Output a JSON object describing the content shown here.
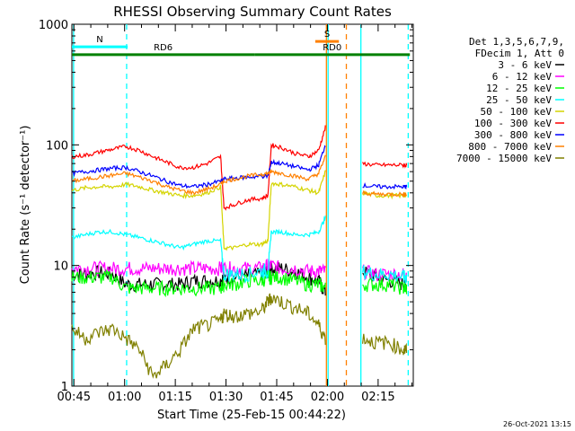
{
  "chart_data": {
    "type": "line",
    "title": "RHESSI Observing Summary Count Rates",
    "xlabel": "Start Time (25-Feb-15 00:44:22)",
    "ylabel": "Count Rate (s⁻¹ detector⁻¹)",
    "yscale": "log",
    "ylim": [
      1,
      1000
    ],
    "xlim_minutes": [
      0,
      101
    ],
    "x_tick_labels": [
      "00:45",
      "01:00",
      "01:15",
      "01:30",
      "01:45",
      "02:00",
      "02:15"
    ],
    "x_tick_minutes": [
      0.6,
      15.6,
      30.6,
      45.6,
      60.6,
      75.6,
      90.6
    ],
    "y_tick_labels": [
      "1",
      "10",
      "100",
      "1000"
    ],
    "y_tick_values": [
      1,
      10,
      100,
      1000
    ],
    "legend_header": [
      "Det 1,3,5,6,7,9,",
      "FDecim 1, Att 0"
    ],
    "legend_placement": "right",
    "timestamp": "26-Oct-2021 13:15",
    "annotations": [
      {
        "label": "N",
        "color": "#00ffff",
        "x_start": 0,
        "x_end": 16.5,
        "y": 650
      },
      {
        "label": "RD6",
        "color": "#008000",
        "x_start": 0,
        "x_end": 54,
        "y": 560
      },
      {
        "label": "RD0",
        "color": "#008000",
        "x_start": 54,
        "x_end": 100,
        "y": 560
      },
      {
        "label": "S",
        "color": "#ff8000",
        "x_start": 72,
        "x_end": 79,
        "y": 720
      }
    ],
    "gaps_minutes": [
      [
        75.5,
        80.5
      ]
    ],
    "vertical_lines": [
      {
        "x": 0.5,
        "color": "#00ffff",
        "style": "solid"
      },
      {
        "x": 16.2,
        "color": "#00ffff",
        "style": "dashed"
      },
      {
        "x": 75.8,
        "color": "#00ffff",
        "style": "solid"
      },
      {
        "x": 75.3,
        "color": "#ff8000",
        "style": "solid"
      },
      {
        "x": 81.2,
        "color": "#ff8000",
        "style": "dashed"
      },
      {
        "x": 85.5,
        "color": "#00ffff",
        "style": "solid"
      },
      {
        "x": 99.5,
        "color": "#00ffff",
        "style": "dashed"
      }
    ],
    "x_minutes": [
      0,
      4,
      8,
      12,
      16,
      20,
      24,
      28,
      32,
      36,
      40,
      44,
      45,
      48,
      52,
      56,
      58,
      59,
      62,
      66,
      70,
      73,
      75,
      76,
      80,
      82,
      84,
      86,
      90,
      94,
      98,
      99
    ],
    "series": [
      {
        "name": "3 - 6 keV",
        "color": "#000000",
        "values": [
          8.5,
          8.5,
          8.8,
          8.5,
          7.0,
          7.0,
          7.0,
          7.0,
          7.0,
          7.5,
          7.5,
          7.5,
          8.0,
          8.0,
          8.2,
          8.5,
          9.0,
          9.5,
          9.5,
          9.0,
          8.0,
          7.5,
          6.0,
          null,
          null,
          null,
          null,
          9.0,
          8.0,
          7.5,
          7.0,
          7.0
        ]
      },
      {
        "name": "6 - 12 keV",
        "color": "#ff00ff",
        "values": [
          9.5,
          9.5,
          9.5,
          9.5,
          9.5,
          9.5,
          9.5,
          9.5,
          9.5,
          9.5,
          9.5,
          9.5,
          9.5,
          9.5,
          9.5,
          9.5,
          10.0,
          10.0,
          9.5,
          9.5,
          9.0,
          9.0,
          9.0,
          null,
          null,
          null,
          null,
          9.0,
          8.5,
          8.5,
          8.5,
          8.5
        ]
      },
      {
        "name": "12 - 25 keV",
        "color": "#00ff00",
        "values": [
          8.0,
          8.0,
          8.0,
          8.0,
          6.5,
          6.5,
          6.5,
          6.5,
          6.5,
          6.5,
          6.5,
          6.5,
          7.0,
          7.0,
          7.5,
          7.5,
          8.0,
          8.0,
          8.0,
          7.5,
          7.0,
          7.0,
          6.5,
          null,
          null,
          null,
          null,
          7.0,
          7.0,
          7.0,
          6.5,
          6.5
        ]
      },
      {
        "name": "25 - 50 keV",
        "color": "#00ffff",
        "values": [
          17,
          18,
          19,
          19,
          18,
          17,
          16,
          15,
          14,
          15,
          16,
          16,
          8.5,
          8.5,
          8.5,
          9.0,
          9.0,
          19,
          19,
          18,
          18,
          19,
          25,
          null,
          null,
          null,
          null,
          9.0,
          8.5,
          8.5,
          8.0,
          8.0
        ]
      },
      {
        "name": "50 - 100 keV",
        "color": "#d4d400",
        "values": [
          42,
          44,
          45,
          45,
          47,
          45,
          42,
          40,
          38,
          38,
          40,
          45,
          14,
          14,
          15,
          15,
          16,
          48,
          47,
          45,
          42,
          40,
          60,
          null,
          null,
          null,
          null,
          40,
          38,
          38,
          38,
          38
        ]
      },
      {
        "name": "100 - 300 keV",
        "color": "#ff0000",
        "values": [
          80,
          82,
          87,
          92,
          97,
          90,
          80,
          72,
          65,
          65,
          70,
          80,
          30,
          32,
          35,
          36,
          38,
          100,
          95,
          85,
          80,
          90,
          140,
          null,
          null,
          null,
          null,
          70,
          68,
          68,
          68,
          68
        ]
      },
      {
        "name": "300 - 800 keV",
        "color": "#0000ff",
        "values": [
          58,
          60,
          62,
          64,
          65,
          60,
          55,
          50,
          46,
          45,
          47,
          50,
          52,
          53,
          54,
          55,
          55,
          72,
          70,
          66,
          62,
          68,
          100,
          null,
          null,
          null,
          null,
          46,
          45,
          45,
          45,
          45
        ]
      },
      {
        "name": "800 - 7000 keV",
        "color": "#ff8000",
        "values": [
          50,
          52,
          54,
          56,
          58,
          54,
          50,
          45,
          42,
          40,
          43,
          47,
          50,
          52,
          55,
          57,
          58,
          60,
          58,
          55,
          52,
          58,
          80,
          null,
          null,
          null,
          null,
          40,
          39,
          39,
          39,
          39
        ]
      },
      {
        "name": "7000 - 15000 keV",
        "color": "#808000",
        "values": [
          3.0,
          2.5,
          2.8,
          3.0,
          2.5,
          2.0,
          1.2,
          1.5,
          2.0,
          3.0,
          3.2,
          3.5,
          4.0,
          3.8,
          4.0,
          4.2,
          5.0,
          5.5,
          5.0,
          4.5,
          4.0,
          3.2,
          2.5,
          null,
          null,
          null,
          null,
          2.5,
          2.3,
          2.3,
          2.0,
          2.0
        ]
      }
    ]
  }
}
